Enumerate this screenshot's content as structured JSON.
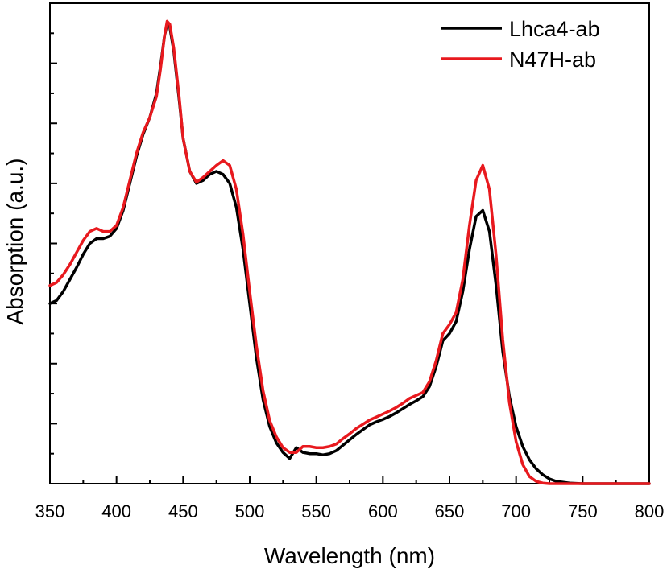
{
  "chart_data": {
    "type": "line",
    "title": "",
    "xlabel": "Wavelength (nm)",
    "ylabel": "Absorption (a.u.)",
    "xlim": [
      350,
      800
    ],
    "ylim": [
      0,
      8
    ],
    "xticks": [
      350,
      400,
      450,
      500,
      550,
      600,
      650,
      700,
      750,
      800
    ],
    "y_tick_labels_shown": false,
    "grid": false,
    "legend_position": "top-right",
    "series": [
      {
        "name": "Lhca4-ab",
        "color": "#000000",
        "points": [
          [
            350,
            3.0
          ],
          [
            355,
            3.05
          ],
          [
            360,
            3.2
          ],
          [
            365,
            3.4
          ],
          [
            370,
            3.6
          ],
          [
            375,
            3.82
          ],
          [
            380,
            4.0
          ],
          [
            385,
            4.08
          ],
          [
            390,
            4.08
          ],
          [
            395,
            4.12
          ],
          [
            400,
            4.25
          ],
          [
            405,
            4.55
          ],
          [
            410,
            5.0
          ],
          [
            415,
            5.45
          ],
          [
            420,
            5.82
          ],
          [
            425,
            6.1
          ],
          [
            430,
            6.5
          ],
          [
            433,
            6.95
          ],
          [
            436,
            7.45
          ],
          [
            438,
            7.65
          ],
          [
            440,
            7.6
          ],
          [
            443,
            7.2
          ],
          [
            447,
            6.4
          ],
          [
            450,
            5.75
          ],
          [
            455,
            5.2
          ],
          [
            460,
            5.0
          ],
          [
            465,
            5.05
          ],
          [
            470,
            5.15
          ],
          [
            475,
            5.2
          ],
          [
            480,
            5.15
          ],
          [
            485,
            5.0
          ],
          [
            490,
            4.6
          ],
          [
            495,
            3.9
          ],
          [
            500,
            3.0
          ],
          [
            505,
            2.1
          ],
          [
            510,
            1.4
          ],
          [
            515,
            0.95
          ],
          [
            520,
            0.68
          ],
          [
            525,
            0.52
          ],
          [
            530,
            0.42
          ],
          [
            535,
            0.6
          ],
          [
            540,
            0.52
          ],
          [
            545,
            0.5
          ],
          [
            550,
            0.5
          ],
          [
            555,
            0.48
          ],
          [
            560,
            0.5
          ],
          [
            565,
            0.55
          ],
          [
            570,
            0.64
          ],
          [
            575,
            0.73
          ],
          [
            580,
            0.82
          ],
          [
            585,
            0.9
          ],
          [
            590,
            0.98
          ],
          [
            595,
            1.03
          ],
          [
            600,
            1.07
          ],
          [
            605,
            1.12
          ],
          [
            610,
            1.18
          ],
          [
            615,
            1.25
          ],
          [
            620,
            1.32
          ],
          [
            625,
            1.38
          ],
          [
            630,
            1.45
          ],
          [
            635,
            1.62
          ],
          [
            640,
            1.95
          ],
          [
            645,
            2.38
          ],
          [
            650,
            2.5
          ],
          [
            655,
            2.7
          ],
          [
            660,
            3.2
          ],
          [
            665,
            3.9
          ],
          [
            670,
            4.45
          ],
          [
            675,
            4.55
          ],
          [
            680,
            4.2
          ],
          [
            685,
            3.3
          ],
          [
            690,
            2.2
          ],
          [
            695,
            1.45
          ],
          [
            700,
            0.95
          ],
          [
            705,
            0.62
          ],
          [
            710,
            0.4
          ],
          [
            715,
            0.25
          ],
          [
            720,
            0.15
          ],
          [
            725,
            0.08
          ],
          [
            730,
            0.04
          ],
          [
            740,
            0.01
          ],
          [
            750,
            0.0
          ],
          [
            800,
            0.0
          ]
        ]
      },
      {
        "name": "N47H-ab",
        "color": "#e8191e",
        "points": [
          [
            350,
            3.3
          ],
          [
            355,
            3.35
          ],
          [
            360,
            3.48
          ],
          [
            365,
            3.65
          ],
          [
            370,
            3.85
          ],
          [
            375,
            4.05
          ],
          [
            380,
            4.2
          ],
          [
            385,
            4.25
          ],
          [
            390,
            4.2
          ],
          [
            395,
            4.2
          ],
          [
            400,
            4.3
          ],
          [
            405,
            4.6
          ],
          [
            410,
            5.05
          ],
          [
            415,
            5.5
          ],
          [
            420,
            5.85
          ],
          [
            425,
            6.1
          ],
          [
            430,
            6.45
          ],
          [
            433,
            6.9
          ],
          [
            436,
            7.45
          ],
          [
            438,
            7.7
          ],
          [
            440,
            7.65
          ],
          [
            443,
            7.25
          ],
          [
            447,
            6.45
          ],
          [
            450,
            5.75
          ],
          [
            455,
            5.2
          ],
          [
            460,
            5.02
          ],
          [
            465,
            5.1
          ],
          [
            470,
            5.2
          ],
          [
            475,
            5.3
          ],
          [
            480,
            5.38
          ],
          [
            485,
            5.3
          ],
          [
            490,
            4.9
          ],
          [
            495,
            4.15
          ],
          [
            500,
            3.2
          ],
          [
            505,
            2.3
          ],
          [
            510,
            1.55
          ],
          [
            515,
            1.05
          ],
          [
            520,
            0.78
          ],
          [
            525,
            0.6
          ],
          [
            530,
            0.52
          ],
          [
            535,
            0.52
          ],
          [
            540,
            0.62
          ],
          [
            545,
            0.62
          ],
          [
            550,
            0.6
          ],
          [
            555,
            0.6
          ],
          [
            560,
            0.62
          ],
          [
            565,
            0.66
          ],
          [
            570,
            0.75
          ],
          [
            575,
            0.83
          ],
          [
            580,
            0.92
          ],
          [
            585,
            0.99
          ],
          [
            590,
            1.06
          ],
          [
            595,
            1.11
          ],
          [
            600,
            1.16
          ],
          [
            605,
            1.21
          ],
          [
            610,
            1.27
          ],
          [
            615,
            1.34
          ],
          [
            620,
            1.42
          ],
          [
            625,
            1.47
          ],
          [
            630,
            1.52
          ],
          [
            635,
            1.7
          ],
          [
            640,
            2.05
          ],
          [
            645,
            2.5
          ],
          [
            650,
            2.65
          ],
          [
            655,
            2.85
          ],
          [
            660,
            3.4
          ],
          [
            665,
            4.3
          ],
          [
            670,
            5.05
          ],
          [
            675,
            5.3
          ],
          [
            680,
            4.9
          ],
          [
            685,
            3.8
          ],
          [
            690,
            2.4
          ],
          [
            695,
            1.35
          ],
          [
            700,
            0.7
          ],
          [
            705,
            0.32
          ],
          [
            710,
            0.12
          ],
          [
            715,
            0.04
          ],
          [
            720,
            0.01
          ],
          [
            725,
            0.0
          ],
          [
            800,
            0.0
          ]
        ]
      }
    ]
  }
}
